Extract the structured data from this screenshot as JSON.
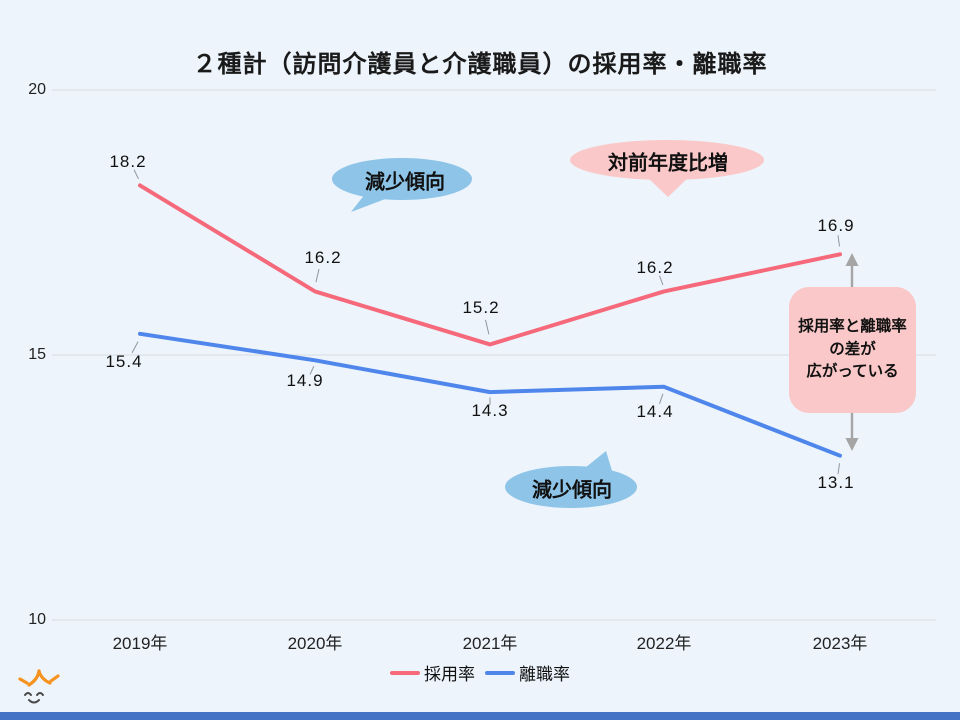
{
  "title": "２種計（訪問介護員と介護職員）の採用率・離職率",
  "chart_data": {
    "type": "line",
    "x": [
      "2019年",
      "2020年",
      "2021年",
      "2022年",
      "2023年"
    ],
    "series": [
      {
        "name": "採用率",
        "color": "#F5697B",
        "values": [
          18.2,
          16.2,
          15.2,
          16.2,
          16.9
        ],
        "labels": [
          "18.2",
          "16.2",
          "15.2",
          "16.2",
          "16.9"
        ],
        "label_offsets": [
          {
            "dx": -12,
            "dy": -23
          },
          {
            "dx": 8,
            "dy": -33
          },
          {
            "dx": -9,
            "dy": -36
          },
          {
            "dx": -9,
            "dy": -23
          },
          {
            "dx": -4,
            "dy": -28
          }
        ]
      },
      {
        "name": "離職率",
        "color": "#4E86EC",
        "values": [
          15.4,
          14.9,
          14.3,
          14.4,
          13.1
        ],
        "labels": [
          "15.4",
          "14.9",
          "14.3",
          "14.4",
          "13.1"
        ],
        "label_offsets": [
          {
            "dx": -16,
            "dy": 28
          },
          {
            "dx": -10,
            "dy": 21
          },
          {
            "dx": 0,
            "dy": 19
          },
          {
            "dx": -9,
            "dy": 25
          },
          {
            "dx": -4,
            "dy": 27
          }
        ]
      }
    ],
    "ylim": [
      10,
      20
    ],
    "yticks": [
      20,
      15,
      10
    ],
    "grid": true,
    "legend_position": "bottom"
  },
  "annotations": {
    "bubble_decline_top": {
      "text": "減少傾向"
    },
    "bubble_increase": {
      "text": "対前年度比増"
    },
    "bubble_decline_bottom": {
      "text": "減少傾向"
    },
    "note_box": {
      "text": "採用率と離職率\nの差が\n広がっている"
    }
  },
  "colors": {
    "background": "#EDF4FB",
    "grid": "#D7DCE1",
    "leader": "#8F959C",
    "accent_red": "#F5697B",
    "accent_blue": "#4E86EC",
    "bubble_blue": "#8DC4E8",
    "bubble_pink": "#FAC8C8",
    "arrow_gray": "#A5A5A5",
    "footer_bar": "#4472C4",
    "logo_orange": "#F6921E",
    "logo_face": "#4A4A4A"
  }
}
